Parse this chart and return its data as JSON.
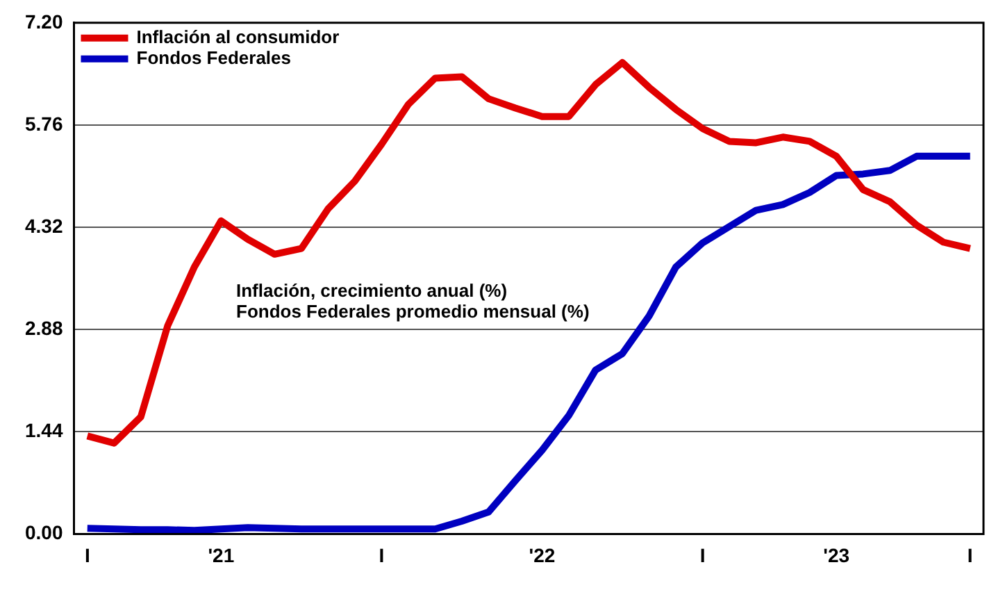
{
  "chart_data": {
    "type": "line",
    "categories": [
      "I",
      null,
      null,
      null,
      null,
      "'21",
      null,
      null,
      null,
      null,
      null,
      "I",
      null,
      null,
      null,
      null,
      null,
      "'22",
      null,
      null,
      null,
      null,
      null,
      "I",
      null,
      null,
      null,
      null,
      "'23",
      null,
      null,
      null,
      null,
      "I"
    ],
    "series": [
      {
        "name": "Inflación al consumidor",
        "color": "#e00000",
        "values": [
          1.38,
          1.28,
          1.65,
          2.93,
          3.76,
          4.41,
          4.15,
          3.94,
          4.02,
          4.58,
          4.97,
          5.49,
          6.05,
          6.42,
          6.44,
          6.13,
          6.0,
          5.88,
          5.88,
          6.33,
          6.64,
          6.29,
          5.98,
          5.71,
          5.53,
          5.51,
          5.59,
          5.53,
          5.32,
          4.85,
          4.68,
          4.35,
          4.11,
          4.02
        ]
      },
      {
        "name": "Fondos Federales",
        "color": "#0000c0",
        "values": [
          0.08,
          0.07,
          0.06,
          0.06,
          0.05,
          0.07,
          0.09,
          0.08,
          0.07,
          0.07,
          0.07,
          0.07,
          0.07,
          0.07,
          0.18,
          0.31,
          0.75,
          1.18,
          1.67,
          2.31,
          2.54,
          3.07,
          3.76,
          4.1,
          4.33,
          4.56,
          4.64,
          4.81,
          5.05,
          5.07,
          5.12,
          5.32,
          5.32,
          5.32
        ]
      }
    ],
    "ylim": [
      0,
      7.2
    ],
    "yticks": [
      {
        "value": 0,
        "label": "0.00"
      },
      {
        "value": 1.44,
        "label": "1.44"
      },
      {
        "value": 2.88,
        "label": "2.88"
      },
      {
        "value": 4.32,
        "label": "4.32"
      },
      {
        "value": 5.76,
        "label": "5.76"
      },
      {
        "value": 7.2,
        "label": "7.20"
      }
    ],
    "grid": "y",
    "legend": "top left",
    "marker": "none",
    "line_style": "solid",
    "annotations": [
      "Inflación, crecimiento anual (%)",
      "Fondos Federales promedio mensual (%)"
    ]
  }
}
